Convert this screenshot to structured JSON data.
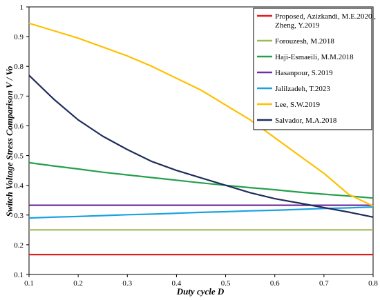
{
  "chart_data": {
    "type": "line",
    "title": "",
    "xlabel": "Duty cycle D",
    "ylabel": "Switch Voltage Stress Comparison V / Vo",
    "xlim": [
      0.1,
      0.8
    ],
    "ylim": [
      0.1,
      1.0
    ],
    "xticks": [
      "0.1",
      "0.2",
      "0.3",
      "0.4",
      "0.5",
      "0.6",
      "0.7",
      "0.8"
    ],
    "yticks": [
      "0.1",
      "0.2",
      "0.3",
      "0.4",
      "0.5",
      "0.6",
      "0.7",
      "0.8",
      "0.9",
      "1"
    ],
    "grid": false,
    "legend_position": "top-right",
    "x": [
      0.1,
      0.15,
      0.2,
      0.25,
      0.3,
      0.35,
      0.4,
      0.45,
      0.5,
      0.55,
      0.6,
      0.65,
      0.7,
      0.75,
      0.8
    ],
    "series": [
      {
        "name": "Proposed, Azizkandi, M.E.2020 , Zheng, Y.2019",
        "legend_lines": [
          "Proposed, Azizkandi, M.E.2020 ,",
          "Zheng, Y.2019"
        ],
        "color": "#e31a1c",
        "values": [
          0.167,
          0.167,
          0.167,
          0.167,
          0.167,
          0.167,
          0.167,
          0.167,
          0.167,
          0.167,
          0.167,
          0.167,
          0.167,
          0.167,
          0.167
        ]
      },
      {
        "name": "Forouzesh, M.2018",
        "legend_lines": [
          "Forouzesh, M.2018"
        ],
        "color": "#9bbb59",
        "values": [
          0.25,
          0.25,
          0.25,
          0.25,
          0.25,
          0.25,
          0.25,
          0.25,
          0.25,
          0.25,
          0.25,
          0.25,
          0.25,
          0.25,
          0.25
        ]
      },
      {
        "name": "Haji-Esmaeili, M.M.2018",
        "legend_lines": [
          "Haji-Esmaeili, M.M.2018"
        ],
        "color": "#22a04b",
        "values": [
          0.476,
          0.465,
          0.455,
          0.444,
          0.435,
          0.426,
          0.417,
          0.408,
          0.4,
          0.392,
          0.385,
          0.377,
          0.37,
          0.364,
          0.357
        ]
      },
      {
        "name": "Hasanpour, S.2019",
        "legend_lines": [
          "Hasanpour, S.2019"
        ],
        "color": "#7030a0",
        "values": [
          0.333,
          0.333,
          0.333,
          0.333,
          0.333,
          0.333,
          0.333,
          0.333,
          0.333,
          0.333,
          0.333,
          0.333,
          0.333,
          0.333,
          0.333
        ]
      },
      {
        "name": "Jalilzadeh, T.2023",
        "legend_lines": [
          "Jalilzadeh, T.2023"
        ],
        "color": "#1ba1e2",
        "values": [
          0.29,
          0.293,
          0.295,
          0.298,
          0.301,
          0.303,
          0.306,
          0.309,
          0.311,
          0.314,
          0.316,
          0.319,
          0.322,
          0.324,
          0.327
        ]
      },
      {
        "name": "Lee, S.W.2019",
        "legend_lines": [
          "Lee, S.W.2019"
        ],
        "color": "#ffc000",
        "values": [
          0.945,
          0.92,
          0.895,
          0.865,
          0.835,
          0.8,
          0.76,
          0.72,
          0.67,
          0.62,
          0.56,
          0.5,
          0.44,
          0.37,
          0.33
        ]
      },
      {
        "name": "Salvador, M.A.2018",
        "legend_lines": [
          "Salvador, M.A.2018"
        ],
        "color": "#1f2d5a",
        "values": [
          0.77,
          0.69,
          0.62,
          0.565,
          0.52,
          0.48,
          0.45,
          0.425,
          0.4,
          0.375,
          0.355,
          0.34,
          0.325,
          0.31,
          0.293
        ]
      }
    ]
  }
}
